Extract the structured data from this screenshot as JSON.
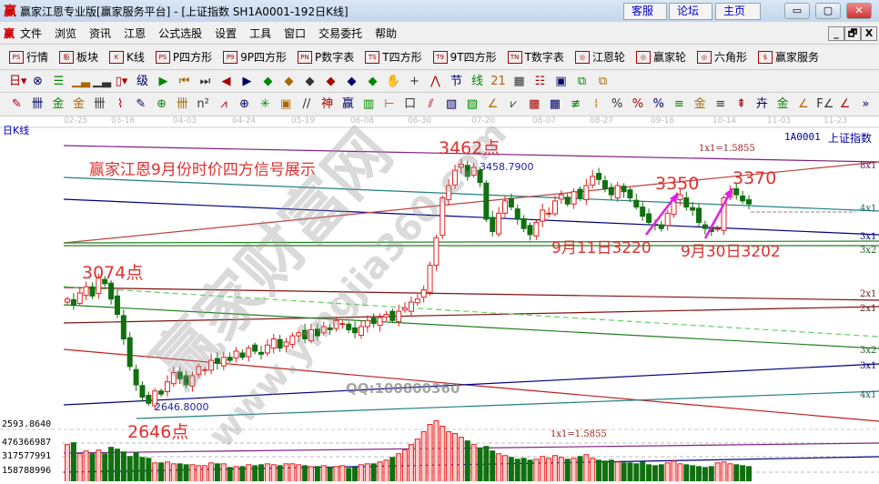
{
  "window": {
    "logo": "赢",
    "title": "赢家江恩专业版[赢家服务平台] - [上证指数  SH1A0001-192日K线]",
    "links": [
      "客服",
      "论坛",
      "主页"
    ],
    "controls": [
      "minimize",
      "maximize",
      "close"
    ]
  },
  "menu": {
    "logo": "赢",
    "items": [
      "文件",
      "浏览",
      "资讯",
      "江恩",
      "公式选股",
      "设置",
      "工具",
      "窗口",
      "交易委托",
      "帮助"
    ],
    "mdi_controls": [
      "_",
      "🗗",
      "X"
    ]
  },
  "toolbar1": [
    {
      "icon": "PS",
      "label": "行情",
      "icon_name": "quote-table-icon"
    },
    {
      "icon": "板",
      "label": "板块",
      "icon_name": "sector-icon"
    },
    {
      "icon": "K",
      "label": "K线",
      "icon_name": "candlestick-icon"
    },
    {
      "icon": "PS",
      "label": "P四方形"
    },
    {
      "icon": "P9",
      "label": "9P四方形"
    },
    {
      "icon": "PN",
      "label": "P数字表"
    },
    {
      "icon": "TS",
      "label": "T四方形"
    },
    {
      "icon": "T9",
      "label": "9T四方形"
    },
    {
      "icon": "TN",
      "label": "T数字表"
    },
    {
      "icon": "◎",
      "label": "江恩轮"
    },
    {
      "icon": "◎",
      "label": "赢家轮"
    },
    {
      "icon": "◎",
      "label": "六角形"
    },
    {
      "icon": "$",
      "label": "赢家服务"
    }
  ],
  "toolbar2": [
    "日▾",
    "⊗",
    "☰",
    "▁▃",
    "▁▃",
    "▯▾",
    "级",
    "▶",
    "⏮",
    "⏭",
    "◀",
    "▶",
    "◆",
    "◆",
    "◆",
    "◆",
    "◆",
    "◆",
    "✋",
    "+",
    "⋀",
    "节",
    "线",
    "21",
    "▦",
    "☷",
    "▣",
    "⧉",
    "⧉"
  ],
  "toolbar3": [
    "✎",
    "卌",
    "金",
    "金",
    "卌",
    "⌇",
    "✎",
    "⊕",
    "卌",
    "n²",
    "⩘",
    "⊕",
    "✳",
    "▣",
    "//",
    "神",
    "赢",
    "▥",
    "⊢",
    "口",
    "⫽",
    "▧",
    "▧",
    "∠",
    "⩗",
    "▦",
    "▦",
    "≢",
    "⁞",
    "%",
    "%",
    "%",
    "≡",
    "金",
    "≡",
    "⇞",
    "卉",
    "金",
    "∠",
    "F∠",
    "∠",
    "»"
  ],
  "chart": {
    "period_label": "日K线",
    "symbol": "1A0001",
    "name": "上证指数",
    "date_ticks": [
      "02-25",
      "03-16",
      "04-03",
      "04-24",
      "05-19",
      "06-08",
      "06-30",
      "07-20",
      "08-07",
      "08-27",
      "09-16",
      "10-14",
      "11-03",
      "11-23"
    ],
    "headline": "赢家江恩9月份时价四方信号展示",
    "annotations": {
      "peak": "3462点",
      "peak_value": "3458.7900",
      "high_left": "3074点",
      "low": "2646点",
      "low_value": "2646.8000",
      "sep11": "9月11日3220",
      "sep30": "9月30日3202",
      "p3350": "3350",
      "p3370": "3370",
      "ratio_top": "1x1=1.5855",
      "ratio_vol": "1x1=1.5855"
    },
    "gann_labels": [
      "8x1",
      "4x1",
      "3x1",
      "3x2",
      "2x1",
      "2x1",
      "3x2",
      "3x1",
      "4x1"
    ],
    "price_axis": {
      "max": 3462,
      "min": 2646,
      "bottom_label": "2593.8640"
    },
    "volume_axis": [
      "476366987",
      "317577991",
      "158788996"
    ],
    "watermark": {
      "brand": "赢家财富网",
      "url": "www.yingjia360.com",
      "qq": "QQ:100800360"
    },
    "colors": {
      "up": "#e02020",
      "down": "#107010",
      "annotation": "#e03030",
      "arrow": "#e020e0"
    }
  },
  "chart_data": {
    "type": "candlestick",
    "closes": [
      3000,
      2980,
      3020,
      3040,
      3010,
      3070,
      3050,
      3000,
      2950,
      2870,
      2780,
      2720,
      2680,
      2660,
      2700,
      2690,
      2730,
      2760,
      2740,
      2720,
      2750,
      2780,
      2770,
      2800,
      2790,
      2810,
      2800,
      2830,
      2810,
      2840,
      2830,
      2820,
      2850,
      2870,
      2840,
      2860,
      2880,
      2890,
      2870,
      2900,
      2880,
      2910,
      2900,
      2930,
      2920,
      2900,
      2890,
      2910,
      2930,
      2920,
      2940,
      2950,
      2930,
      2960,
      2970,
      2990,
      3000,
      3030,
      3110,
      3200,
      3330,
      3370,
      3420,
      3440,
      3400,
      3430,
      3380,
      3260,
      3220,
      3280,
      3320,
      3300,
      3260,
      3230,
      3210,
      3250,
      3290,
      3280,
      3320,
      3340,
      3310,
      3350,
      3330,
      3370,
      3400,
      3390,
      3360,
      3340,
      3370,
      3350,
      3330,
      3300,
      3270,
      3250,
      3240,
      3230,
      3280,
      3320,
      3340,
      3300,
      3290,
      3250,
      3230,
      3220,
      3230,
      3330,
      3350,
      3340,
      3320,
      3310
    ],
    "volumes": [
      460000000.0,
      480000000.0,
      360000000.0,
      390000000.0,
      360000000.0,
      400000000.0,
      360000000.0,
      430000000.0,
      410000000.0,
      380000000.0,
      330000000.0,
      370000000.0,
      320000000.0,
      310000000.0,
      260000000.0,
      260000000.0,
      270000000.0,
      250000000.0,
      250000000.0,
      240000000.0,
      240000000.0,
      230000000.0,
      230000000.0,
      260000000.0,
      250000000.0,
      250000000.0,
      210000000.0,
      220000000.0,
      220000000.0,
      240000000.0,
      230000000.0,
      240000000.0,
      250000000.0,
      240000000.0,
      230000000.0,
      250000000.0,
      250000000.0,
      240000000.0,
      230000000.0,
      220000000.0,
      220000000.0,
      230000000.0,
      210000000.0,
      220000000.0,
      230000000.0,
      200000000.0,
      210000000.0,
      240000000.0,
      250000000.0,
      250000000.0,
      270000000.0,
      290000000.0,
      320000000.0,
      360000000.0,
      400000000.0,
      460000000.0,
      520000000.0,
      600000000.0,
      680000000.0,
      720000000.0,
      660000000.0,
      600000000.0,
      580000000.0,
      540000000.0,
      500000000.0,
      460000000.0,
      420000000.0,
      440000000.0,
      390000000.0,
      360000000.0,
      340000000.0,
      320000000.0,
      300000000.0,
      310000000.0,
      290000000.0,
      300000000.0,
      330000000.0,
      310000000.0,
      340000000.0,
      320000000.0,
      300000000.0,
      310000000.0,
      330000000.0,
      350000000.0,
      310000000.0,
      290000000.0,
      280000000.0,
      290000000.0,
      270000000.0,
      260000000.0,
      260000000.0,
      250000000.0,
      270000000.0,
      240000000.0,
      230000000.0,
      240000000.0,
      260000000.0,
      280000000.0,
      250000000.0,
      240000000.0,
      230000000.0,
      220000000.0,
      210000000.0,
      220000000.0,
      260000000.0,
      270000000.0,
      250000000.0,
      240000000.0,
      230000000.0,
      220000000.0
    ]
  }
}
